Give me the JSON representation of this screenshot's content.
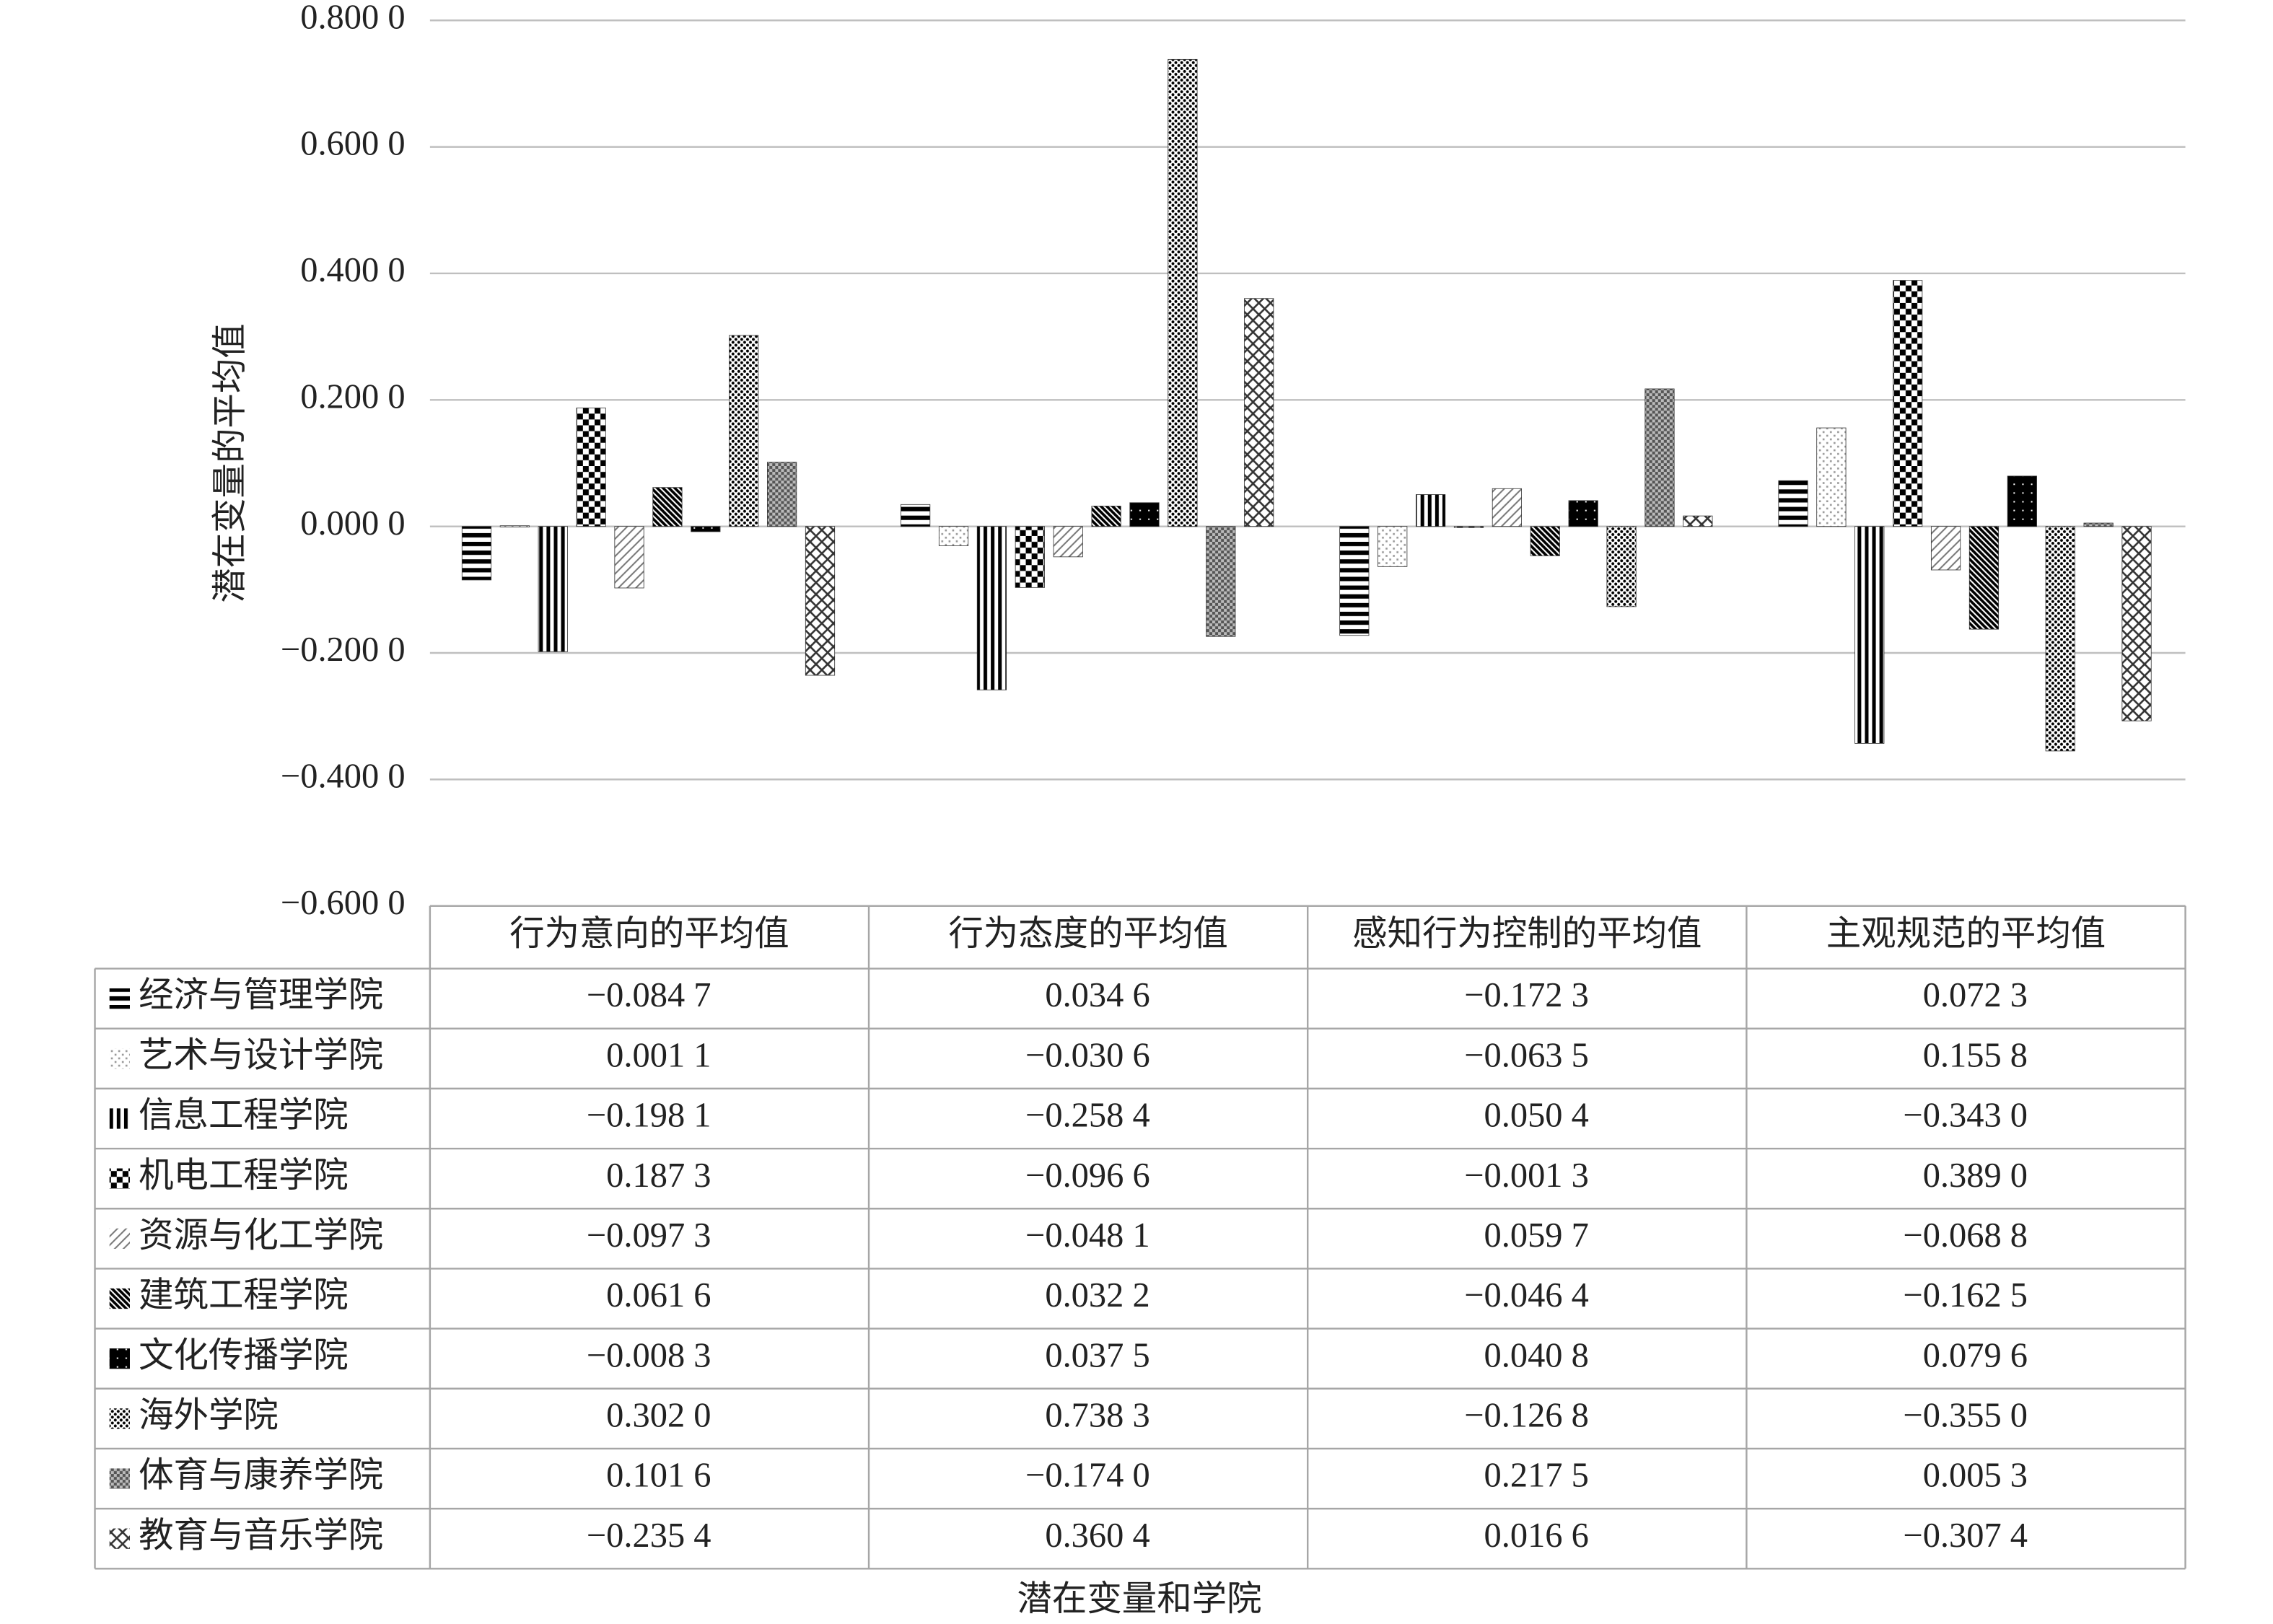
{
  "chart_data": {
    "type": "bar",
    "y_label": "潜在变量的平均值",
    "x_label": "潜在变量和学院",
    "categories": [
      "行为意向的平均值",
      "行为态度的平均值",
      "感知行为控制的平均值",
      "主观规范的平均值"
    ],
    "ylim": [
      -0.6,
      0.8
    ],
    "yticks": [
      {
        "value": 0.8,
        "label": "0.800 0"
      },
      {
        "value": 0.6,
        "label": "0.600 0"
      },
      {
        "value": 0.4,
        "label": "0.400 0"
      },
      {
        "value": 0.2,
        "label": "0.200 0"
      },
      {
        "value": 0,
        "label": "0.000 0"
      },
      {
        "value": -0.2,
        "label": "−0.200 0"
      },
      {
        "value": -0.4,
        "label": "−0.400 0"
      },
      {
        "value": -0.6,
        "label": "−0.600 0"
      }
    ],
    "grid": true,
    "series": [
      {
        "name": "经济与管理学院",
        "color": "#000000",
        "values": [
          -0.0847,
          0.0346,
          -0.1723,
          0.0723
        ],
        "value_labels": [
          "−0.084 7",
          "0.034 6",
          "−0.172 3",
          "0.072 3"
        ]
      },
      {
        "name": "艺术与设计学院",
        "color": "#000000",
        "values": [
          0.0011,
          -0.0306,
          -0.0635,
          0.1558
        ],
        "value_labels": [
          "0.001 1",
          "−0.030 6",
          "−0.063 5",
          "0.155 8"
        ]
      },
      {
        "name": "信息工程学院",
        "color": "#000000",
        "values": [
          -0.1981,
          -0.2584,
          0.0504,
          -0.343
        ],
        "value_labels": [
          "−0.198 1",
          "−0.258 4",
          "0.050 4",
          "−0.343 0"
        ]
      },
      {
        "name": "机电工程学院",
        "color": "#000000",
        "values": [
          0.1873,
          -0.0966,
          -0.0013,
          0.389
        ],
        "value_labels": [
          "0.187 3",
          "−0.096 6",
          "−0.001 3",
          "0.389 0"
        ]
      },
      {
        "name": "资源与化工学院",
        "color": "#000000",
        "values": [
          -0.0973,
          -0.0481,
          0.0597,
          -0.0688
        ],
        "value_labels": [
          "−0.097 3",
          "−0.048 1",
          "0.059 7",
          "−0.068 8"
        ]
      },
      {
        "name": "建筑工程学院",
        "color": "#000000",
        "values": [
          0.0616,
          0.0322,
          -0.0464,
          -0.1625
        ],
        "value_labels": [
          "0.061 6",
          "0.032 2",
          "−0.046 4",
          "−0.162 5"
        ]
      },
      {
        "name": "文化传播学院",
        "color": "#000000",
        "values": [
          -0.0083,
          0.0375,
          0.0408,
          0.0796
        ],
        "value_labels": [
          "−0.008 3",
          "0.037 5",
          "0.040 8",
          "0.079 6"
        ]
      },
      {
        "name": "海外学院",
        "color": "#000000",
        "values": [
          0.302,
          0.7383,
          -0.1268,
          -0.355
        ],
        "value_labels": [
          "0.302 0",
          "0.738 3",
          "−0.126 8",
          "−0.355 0"
        ]
      },
      {
        "name": "体育与康养学院",
        "color": "#555555",
        "values": [
          0.1016,
          -0.174,
          0.2175,
          0.0053
        ],
        "value_labels": [
          "0.101 6",
          "−0.174 0",
          "0.217 5",
          "0.005 3"
        ]
      },
      {
        "name": "教育与音乐学院",
        "color": "#333333",
        "values": [
          -0.2354,
          0.3604,
          0.0166,
          -0.3074
        ],
        "value_labels": [
          "−0.235 4",
          "0.360 4",
          "0.016 6",
          "−0.307 4"
        ]
      }
    ]
  }
}
